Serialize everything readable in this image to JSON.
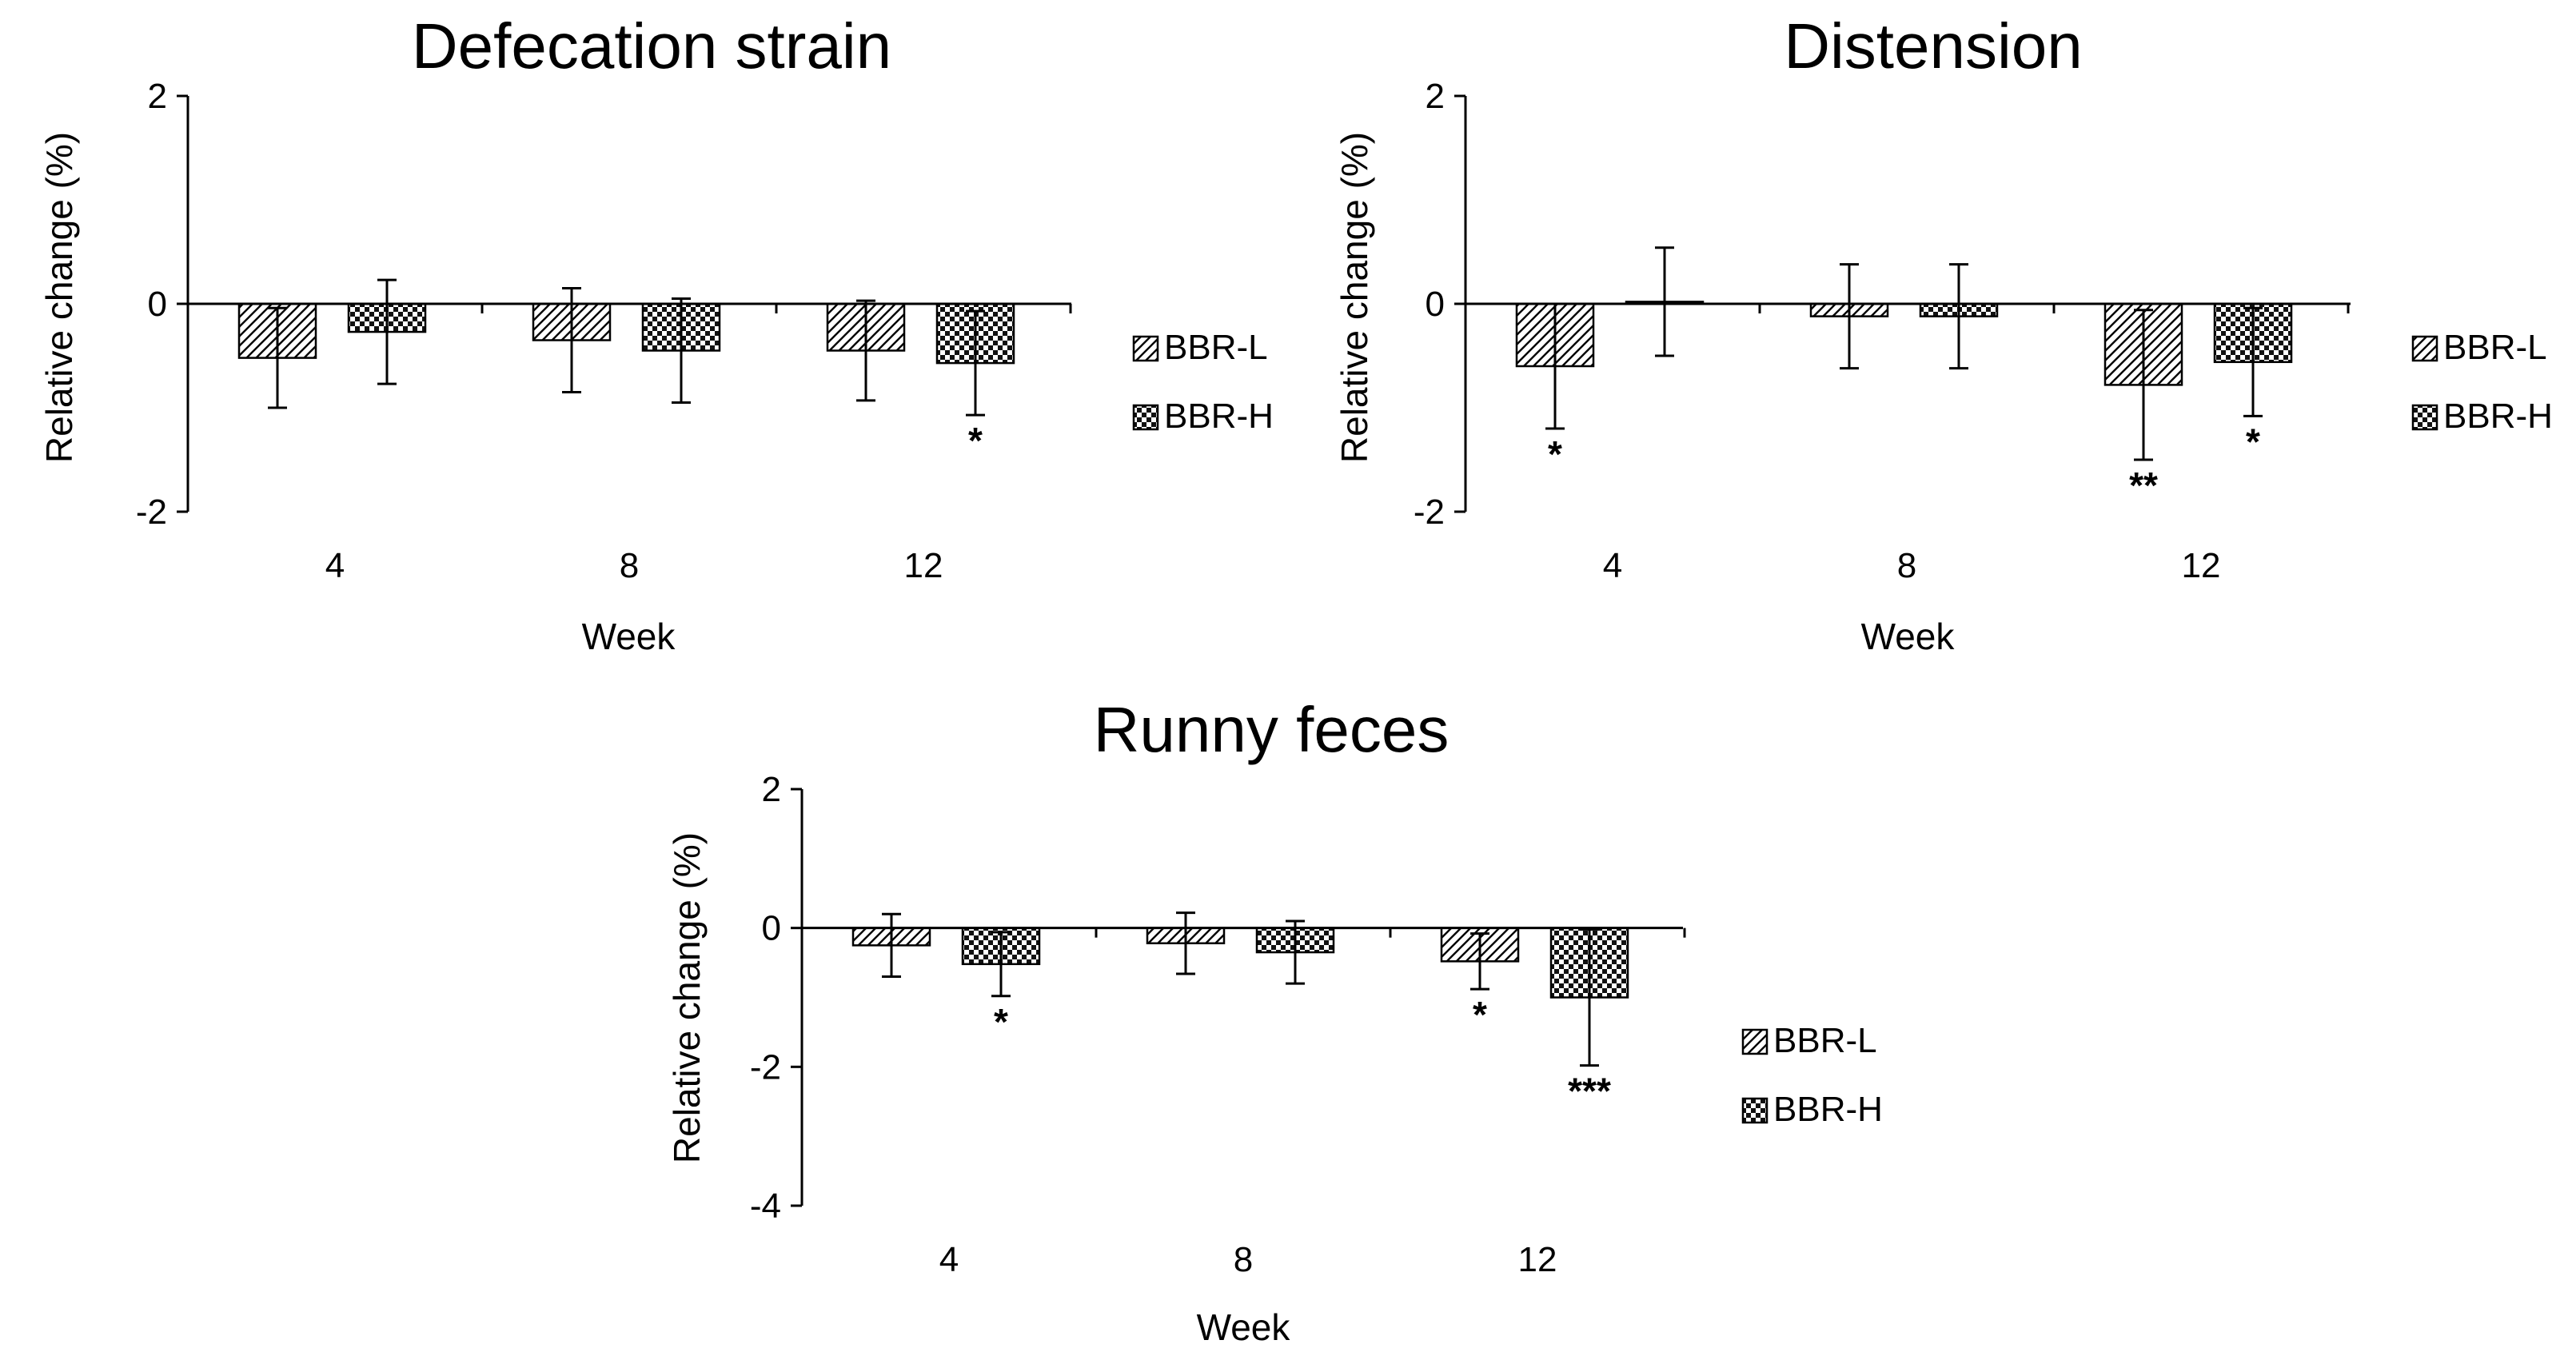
{
  "chart_data": [
    {
      "type": "bar",
      "title": "Defecation strain",
      "xlabel": "Week",
      "ylabel": "Relative change (%)",
      "categories": [
        "4",
        "8",
        "12"
      ],
      "ylim": [
        -2,
        2
      ],
      "yticks": [
        2,
        0,
        -2
      ],
      "legend": "right",
      "series": [
        {
          "name": "BBR-L",
          "pattern": "hatch",
          "values": [
            -0.52,
            -0.35,
            -0.45
          ],
          "errors": [
            0.48,
            0.5,
            0.48
          ],
          "significance": [
            "",
            "",
            ""
          ]
        },
        {
          "name": "BBR-H",
          "pattern": "checker",
          "values": [
            -0.27,
            -0.45,
            -0.57
          ],
          "errors": [
            0.5,
            0.5,
            0.5
          ],
          "significance": [
            "",
            "",
            "*"
          ]
        }
      ]
    },
    {
      "type": "bar",
      "title": "Distension",
      "xlabel": "Week",
      "ylabel": "Relative change (%)",
      "categories": [
        "4",
        "8",
        "12"
      ],
      "ylim": [
        -2,
        2
      ],
      "yticks": [
        2,
        0,
        -2
      ],
      "legend": "right",
      "series": [
        {
          "name": "BBR-L",
          "pattern": "hatch",
          "values": [
            -0.6,
            -0.12,
            -0.78
          ],
          "errors": [
            0.6,
            0.5,
            0.72
          ],
          "significance": [
            "*",
            "",
            "**"
          ]
        },
        {
          "name": "BBR-H",
          "pattern": "checker",
          "values": [
            0.02,
            -0.12,
            -0.56
          ],
          "errors": [
            0.52,
            0.5,
            0.52
          ],
          "significance": [
            "",
            "",
            "*"
          ]
        }
      ]
    },
    {
      "type": "bar",
      "title": "Runny feces",
      "xlabel": "Week",
      "ylabel": "Relative change (%)",
      "categories": [
        "4",
        "8",
        "12"
      ],
      "ylim": [
        -4,
        2
      ],
      "yticks": [
        2,
        0,
        -2,
        -4
      ],
      "legend": "right",
      "series": [
        {
          "name": "BBR-L",
          "pattern": "hatch",
          "values": [
            -0.25,
            -0.22,
            -0.48
          ],
          "errors": [
            0.45,
            0.44,
            0.4
          ],
          "significance": [
            "",
            "",
            "*"
          ]
        },
        {
          "name": "BBR-H",
          "pattern": "checker",
          "values": [
            -0.52,
            -0.35,
            -1.0
          ],
          "errors": [
            0.46,
            0.45,
            0.98
          ],
          "significance": [
            "*",
            "",
            "***"
          ]
        }
      ]
    }
  ]
}
